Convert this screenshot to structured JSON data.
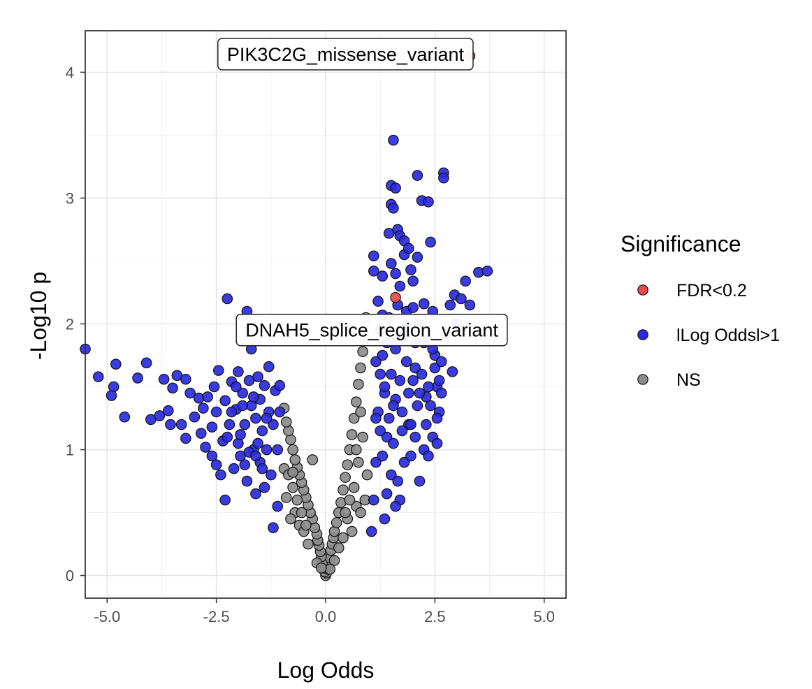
{
  "chart_data": {
    "type": "scatter",
    "xlabel": "Log Odds",
    "ylabel": "-Log10 p",
    "xlim": [
      -5.5,
      5.5
    ],
    "ylim": [
      -0.18,
      4.33
    ],
    "x_ticks": [
      -5.0,
      -2.5,
      0.0,
      2.5,
      5.0
    ],
    "x_tick_labels": [
      "-5.0",
      "-2.5",
      "0.0",
      "2.5",
      "5.0"
    ],
    "y_ticks": [
      0,
      1,
      2,
      3,
      4
    ],
    "y_tick_labels": [
      "0",
      "1",
      "2",
      "3",
      "4"
    ],
    "grid": true,
    "legend": {
      "title": "Significance",
      "position": "right",
      "entries": [
        {
          "label": "FDR<0.2",
          "color": "#e84b4b"
        },
        {
          "label": "lLog Oddsl>1",
          "color": "#2a2ae0"
        },
        {
          "label": "NS",
          "color": "#8c8c8c"
        }
      ]
    },
    "annotations": [
      {
        "text": "PIK3C2G_missense_variant",
        "x": 3.3,
        "y": 4.13
      },
      {
        "text": "DNAH5_splice_region_variant",
        "x": 1.6,
        "y": 2.21
      }
    ],
    "series": [
      {
        "name": "FDR<0.2",
        "color": "#e84b4b",
        "points": [
          [
            3.3,
            4.13
          ],
          [
            1.6,
            2.21
          ]
        ]
      },
      {
        "name": "lLog Oddsl>1",
        "color": "#2a2ae0",
        "points": [
          [
            -5.5,
            1.8
          ],
          [
            -5.2,
            1.58
          ],
          [
            -4.8,
            1.68
          ],
          [
            -4.85,
            1.5
          ],
          [
            -4.9,
            1.43
          ],
          [
            -4.6,
            1.26
          ],
          [
            -4.3,
            1.57
          ],
          [
            -4.1,
            1.69
          ],
          [
            -4.0,
            1.24
          ],
          [
            -3.8,
            1.27
          ],
          [
            -3.7,
            1.56
          ],
          [
            -3.6,
            1.31
          ],
          [
            -3.55,
            1.2
          ],
          [
            -3.5,
            1.49
          ],
          [
            -3.4,
            1.59
          ],
          [
            -3.3,
            1.2
          ],
          [
            -3.2,
            1.56
          ],
          [
            -3.2,
            1.09
          ],
          [
            -3.1,
            1.45
          ],
          [
            -3.0,
            1.26
          ],
          [
            -2.9,
            1.41
          ],
          [
            -2.85,
            1.13
          ],
          [
            -2.8,
            1.33
          ],
          [
            -2.75,
            1.02
          ],
          [
            -2.7,
            1.42
          ],
          [
            -2.6,
            1.18
          ],
          [
            -2.6,
            0.95
          ],
          [
            -2.55,
            1.5
          ],
          [
            -2.5,
            1.3
          ],
          [
            -2.5,
            0.88
          ],
          [
            -2.45,
            1.63
          ],
          [
            -2.4,
            0.8
          ],
          [
            -2.35,
            1.07
          ],
          [
            -2.3,
            0.6
          ],
          [
            -2.3,
            1.39
          ],
          [
            -2.25,
            2.2
          ],
          [
            -2.2,
            1.2
          ],
          [
            -2.15,
            1.54
          ],
          [
            -2.1,
            0.85
          ],
          [
            -2.05,
            1.32
          ],
          [
            -2.0,
            1.05
          ],
          [
            -2.0,
            1.62
          ],
          [
            -1.95,
            0.95
          ],
          [
            -1.9,
            1.45
          ],
          [
            -1.85,
            1.2
          ],
          [
            -1.8,
            2.1
          ],
          [
            -1.8,
            0.75
          ],
          [
            -1.75,
            1.55
          ],
          [
            -1.7,
            1.35
          ],
          [
            -1.7,
            1.8
          ],
          [
            -1.65,
            1.0
          ],
          [
            -1.6,
            0.65
          ],
          [
            -1.6,
            1.25
          ],
          [
            -1.55,
            1.58
          ],
          [
            -1.5,
            0.9
          ],
          [
            -1.5,
            1.4
          ],
          [
            -1.45,
            1.15
          ],
          [
            -1.4,
            0.7
          ],
          [
            -1.4,
            1.51
          ],
          [
            -1.35,
            1.0
          ],
          [
            -1.3,
            1.3
          ],
          [
            -1.3,
            1.66
          ],
          [
            -1.25,
            0.8
          ],
          [
            -1.2,
            1.2
          ],
          [
            -1.2,
            0.38
          ],
          [
            -1.15,
            1.47
          ],
          [
            -1.1,
            1.0
          ],
          [
            -1.1,
            0.55
          ],
          [
            -1.05,
            1.3
          ],
          [
            -1.05,
            1.51
          ],
          [
            -2.05,
            1.5
          ],
          [
            -1.95,
            1.12
          ],
          [
            -1.85,
            0.88
          ],
          [
            -1.75,
            0.98
          ],
          [
            -1.65,
            1.42
          ],
          [
            -1.55,
            1.05
          ],
          [
            -1.45,
            0.85
          ],
          [
            -1.35,
            1.25
          ],
          [
            -2.15,
            1.3
          ],
          [
            -2.25,
            1.1
          ],
          [
            -1.9,
            1.35
          ],
          [
            -1.6,
            0.95
          ],
          [
            1.05,
            0.35
          ],
          [
            1.1,
            0.6
          ],
          [
            1.1,
            2.42
          ],
          [
            1.1,
            2.54
          ],
          [
            1.15,
            0.9
          ],
          [
            1.2,
            1.3
          ],
          [
            1.2,
            2.18
          ],
          [
            1.25,
            1.6
          ],
          [
            1.3,
            2.38
          ],
          [
            1.3,
            2.07
          ],
          [
            1.35,
            0.45
          ],
          [
            1.4,
            1.1
          ],
          [
            1.4,
            1.85
          ],
          [
            1.45,
            2.72
          ],
          [
            1.5,
            2.95
          ],
          [
            1.5,
            2.48
          ],
          [
            1.5,
            3.1
          ],
          [
            1.5,
            0.8
          ],
          [
            1.55,
            3.46
          ],
          [
            1.55,
            2.92
          ],
          [
            1.6,
            3.08
          ],
          [
            1.6,
            2.4
          ],
          [
            1.6,
            1.4
          ],
          [
            1.65,
            2.75
          ],
          [
            1.7,
            2.3
          ],
          [
            1.7,
            2.7
          ],
          [
            1.7,
            0.6
          ],
          [
            1.75,
            1.9
          ],
          [
            1.8,
            2.66
          ],
          [
            1.8,
            2.55
          ],
          [
            1.85,
            2.1
          ],
          [
            1.9,
            2.6
          ],
          [
            1.9,
            1.2
          ],
          [
            1.95,
            2.43
          ],
          [
            2.0,
            2.34
          ],
          [
            2.0,
            2.13
          ],
          [
            2.05,
            1.65
          ],
          [
            2.1,
            3.18
          ],
          [
            2.1,
            2.53
          ],
          [
            2.15,
            2.0
          ],
          [
            2.2,
            2.98
          ],
          [
            2.25,
            2.16
          ],
          [
            2.3,
            1.42
          ],
          [
            2.35,
            2.97
          ],
          [
            2.4,
            2.65
          ],
          [
            2.45,
            2.1
          ],
          [
            2.5,
            1.75
          ],
          [
            2.55,
            1.5
          ],
          [
            2.6,
            1.3
          ],
          [
            2.7,
            3.2
          ],
          [
            2.7,
            3.16
          ],
          [
            2.75,
            1.92
          ],
          [
            2.85,
            2.15
          ],
          [
            2.9,
            1.62
          ],
          [
            2.95,
            2.23
          ],
          [
            3.0,
            2.0
          ],
          [
            3.1,
            2.2
          ],
          [
            3.2,
            2.34
          ],
          [
            3.3,
            2.15
          ],
          [
            3.5,
            2.41
          ],
          [
            3.7,
            2.42
          ],
          [
            1.15,
            1.7
          ],
          [
            1.25,
            1.15
          ],
          [
            1.3,
            0.95
          ],
          [
            1.35,
            1.45
          ],
          [
            1.4,
            0.65
          ],
          [
            1.45,
            1.25
          ],
          [
            1.5,
            1.6
          ],
          [
            1.55,
            1.05
          ],
          [
            1.6,
            1.8
          ],
          [
            1.65,
            0.75
          ],
          [
            1.7,
            1.55
          ],
          [
            1.75,
            1.3
          ],
          [
            1.8,
            0.9
          ],
          [
            1.85,
            1.7
          ],
          [
            1.9,
            1.45
          ],
          [
            1.95,
            0.95
          ],
          [
            2.0,
            1.55
          ],
          [
            2.05,
            1.1
          ],
          [
            2.1,
            1.35
          ],
          [
            2.15,
            0.75
          ],
          [
            2.2,
            1.6
          ],
          [
            2.25,
            1.0
          ],
          [
            2.3,
            1.2
          ],
          [
            2.35,
            1.5
          ],
          [
            2.4,
            1.35
          ],
          [
            2.45,
            1.1
          ],
          [
            2.5,
            1.65
          ],
          [
            2.55,
            1.25
          ],
          [
            2.6,
            1.55
          ],
          [
            2.65,
            1.45
          ],
          [
            1.25,
            1.95
          ],
          [
            1.45,
            2.05
          ],
          [
            1.65,
            2.15
          ],
          [
            1.85,
            1.98
          ],
          [
            2.05,
            1.85
          ],
          [
            2.25,
            1.85
          ],
          [
            2.45,
            1.8
          ],
          [
            2.65,
            1.7
          ],
          [
            1.35,
            1.5
          ],
          [
            1.55,
            1.35
          ],
          [
            1.75,
            1.15
          ],
          [
            1.95,
            1.2
          ],
          [
            2.15,
            1.45
          ],
          [
            2.35,
            0.95
          ],
          [
            2.55,
            1.05
          ],
          [
            1.15,
            1.25
          ],
          [
            1.3,
            1.75
          ],
          [
            1.6,
            0.55
          ]
        ]
      },
      {
        "name": "NS",
        "color": "#8c8c8c",
        "points": [
          [
            0.0,
            0.0
          ],
          [
            0.02,
            0.02
          ],
          [
            -0.02,
            0.03
          ],
          [
            0.05,
            0.05
          ],
          [
            -0.05,
            0.06
          ],
          [
            0.08,
            0.1
          ],
          [
            -0.08,
            0.1
          ],
          [
            0.1,
            0.14
          ],
          [
            -0.1,
            0.15
          ],
          [
            0.12,
            0.2
          ],
          [
            -0.12,
            0.19
          ],
          [
            0.15,
            0.25
          ],
          [
            -0.15,
            0.24
          ],
          [
            0.18,
            0.3
          ],
          [
            -0.18,
            0.28
          ],
          [
            0.2,
            0.35
          ],
          [
            -0.2,
            0.33
          ],
          [
            0.25,
            0.42
          ],
          [
            -0.25,
            0.38
          ],
          [
            0.3,
            0.5
          ],
          [
            -0.3,
            0.45
          ],
          [
            0.35,
            0.58
          ],
          [
            -0.35,
            0.5
          ],
          [
            0.4,
            0.68
          ],
          [
            -0.4,
            0.56
          ],
          [
            0.45,
            0.78
          ],
          [
            -0.45,
            0.62
          ],
          [
            0.5,
            0.88
          ],
          [
            -0.5,
            0.68
          ],
          [
            0.55,
            1.0
          ],
          [
            -0.55,
            0.74
          ],
          [
            0.6,
            1.12
          ],
          [
            -0.6,
            0.8
          ],
          [
            0.65,
            1.25
          ],
          [
            -0.65,
            0.86
          ],
          [
            0.7,
            1.38
          ],
          [
            -0.7,
            0.92
          ],
          [
            0.75,
            1.52
          ],
          [
            -0.75,
            1.0
          ],
          [
            0.8,
            1.65
          ],
          [
            -0.8,
            1.08
          ],
          [
            0.85,
            1.78
          ],
          [
            -0.85,
            1.15
          ],
          [
            0.9,
            1.88
          ],
          [
            -0.9,
            1.22
          ],
          [
            -0.95,
            1.33
          ],
          [
            0.92,
            2.05
          ],
          [
            -0.3,
            0.92
          ],
          [
            0.6,
            0.35
          ],
          [
            0.7,
            0.55
          ],
          [
            0.8,
            0.5
          ],
          [
            0.5,
            0.45
          ],
          [
            0.4,
            0.3
          ],
          [
            0.3,
            0.22
          ],
          [
            -0.6,
            0.4
          ],
          [
            -0.7,
            0.5
          ],
          [
            -0.8,
            0.45
          ],
          [
            -0.5,
            0.35
          ],
          [
            -0.4,
            0.25
          ],
          [
            0.9,
            0.6
          ],
          [
            0.95,
            0.8
          ],
          [
            0.85,
            1.1
          ],
          [
            0.75,
            0.9
          ],
          [
            0.65,
            0.7
          ],
          [
            -0.9,
            0.62
          ],
          [
            -0.95,
            0.85
          ],
          [
            -0.85,
            0.8
          ],
          [
            -0.75,
            0.7
          ],
          [
            0.2,
            0.12
          ],
          [
            -0.2,
            0.1
          ],
          [
            0.1,
            0.05
          ],
          [
            -0.1,
            0.06
          ],
          [
            0.55,
            0.6
          ],
          [
            0.45,
            0.5
          ],
          [
            -0.55,
            0.5
          ],
          [
            -0.45,
            0.4
          ],
          [
            0.7,
            1.0
          ],
          [
            0.8,
            1.3
          ],
          [
            -0.65,
            0.6
          ],
          [
            -0.75,
            0.82
          ]
        ]
      }
    ]
  }
}
